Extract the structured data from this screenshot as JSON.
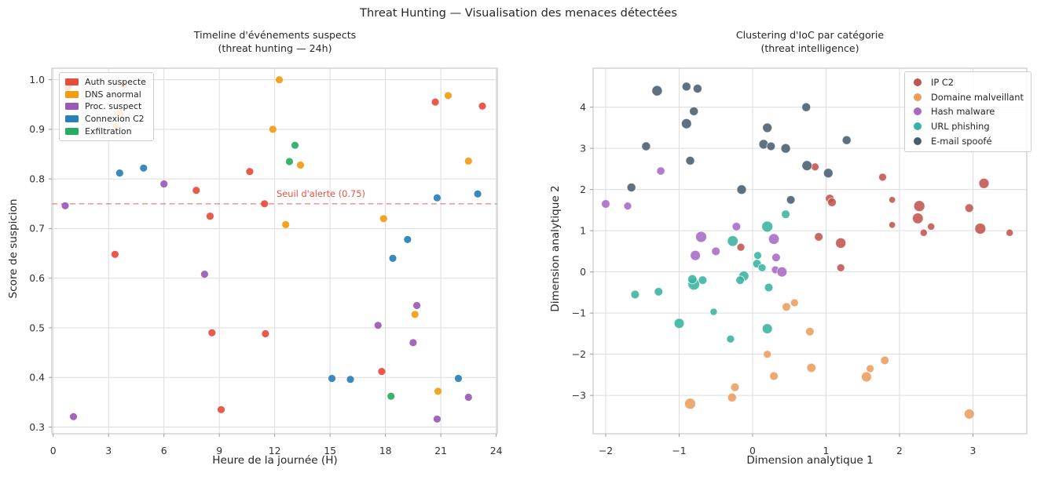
{
  "figure": {
    "title": "Threat Hunting — Visualisation des menaces détectées"
  },
  "chart_data": [
    {
      "type": "scatter",
      "title_line1": "Timeline d'événements suspects",
      "title_line2": "(threat hunting — 24h)",
      "xlabel": "Heure de la journée (H)",
      "ylabel": "Score de suspicion",
      "xlim": [
        -0.072,
        24.06
      ],
      "ylim": [
        0.2865,
        1.0232
      ],
      "xticks": {
        "values": [
          0,
          3,
          6,
          9,
          12,
          15,
          18,
          21,
          24
        ],
        "labels": [
          "0",
          "3",
          "6",
          "9",
          "12",
          "15",
          "18",
          "21",
          "24"
        ]
      },
      "yticks": {
        "values": [
          0.3,
          0.4,
          0.5,
          0.6,
          0.7,
          0.8,
          0.9,
          1.0
        ],
        "labels": [
          "0.3",
          "0.4",
          "0.5",
          "0.6",
          "0.7",
          "0.8",
          "0.9",
          "1.0"
        ]
      },
      "grid": true,
      "legend_position": "upper-left",
      "legend_marker": "rect",
      "marker_r": 4.6,
      "marker_alpha": 0.92,
      "marker_stroke": 0,
      "threshold": {
        "value": 0.75,
        "label": "Seuil d'alerte (0.75)",
        "color": "rgba(231,76,60,0.55)",
        "label_color": "#e05545",
        "label_x": 12.1,
        "label_y": 0.764
      },
      "series": [
        {
          "name": "Auth suspecte",
          "color": "#e74c3c",
          "points": [
            [
              0.8,
              0.985
            ],
            [
              3.8,
              0.99
            ],
            [
              3.35,
              0.648
            ],
            [
              7.75,
              0.777
            ],
            [
              8.5,
              0.725
            ],
            [
              8.6,
              0.49
            ],
            [
              9.1,
              0.335
            ],
            [
              10.65,
              0.815
            ],
            [
              11.45,
              0.75
            ],
            [
              11.5,
              0.488
            ],
            [
              17.8,
              0.412
            ],
            [
              20.7,
              0.955
            ],
            [
              23.25,
              0.947
            ]
          ]
        },
        {
          "name": "DNS anormal",
          "color": "#f39c12",
          "points": [
            [
              3.4,
              0.905
            ],
            [
              3.6,
              0.932
            ],
            [
              11.9,
              0.9
            ],
            [
              12.25,
              1.0
            ],
            [
              12.6,
              0.708
            ],
            [
              13.4,
              0.828
            ],
            [
              17.9,
              0.72
            ],
            [
              19.6,
              0.527
            ],
            [
              20.85,
              0.372
            ],
            [
              21.4,
              0.968
            ],
            [
              22.5,
              0.836
            ]
          ]
        },
        {
          "name": "Proc. suspect",
          "color": "#9b59b6",
          "points": [
            [
              0.65,
              0.746
            ],
            [
              1.1,
              0.321
            ],
            [
              6.0,
              0.79
            ],
            [
              8.2,
              0.608
            ],
            [
              17.6,
              0.505
            ],
            [
              19.5,
              0.47
            ],
            [
              19.7,
              0.545
            ],
            [
              20.8,
              0.316
            ],
            [
              22.5,
              0.36
            ]
          ]
        },
        {
          "name": "Connexion C2",
          "color": "#2980b9",
          "points": [
            [
              3.6,
              0.812
            ],
            [
              4.9,
              0.822
            ],
            [
              15.1,
              0.398
            ],
            [
              16.1,
              0.396
            ],
            [
              18.4,
              0.64
            ],
            [
              19.2,
              0.678
            ],
            [
              20.8,
              0.762
            ],
            [
              21.95,
              0.398
            ],
            [
              23.0,
              0.77
            ]
          ]
        },
        {
          "name": "Exfiltration",
          "color": "#27ae60",
          "points": [
            [
              12.8,
              0.835
            ],
            [
              13.1,
              0.868
            ],
            [
              18.3,
              0.362
            ]
          ]
        }
      ]
    },
    {
      "type": "scatter",
      "title_line1": "Clustering d'IoC par catégorie",
      "title_line2": "(threat intelligence)",
      "xlabel": "Dimension analytique 1",
      "ylabel": "Dimension analytique 2",
      "xlim": [
        -2.171,
        3.733
      ],
      "ylim": [
        -3.93,
        4.946
      ],
      "xticks": {
        "values": [
          -2,
          -1,
          0,
          1,
          2,
          3
        ],
        "labels": [
          "−2",
          "−1",
          "0",
          "1",
          "2",
          "3"
        ]
      },
      "yticks": {
        "values": [
          -3,
          -2,
          -1,
          0,
          1,
          2,
          3,
          4
        ],
        "labels": [
          "−3",
          "−2",
          "−1",
          "0",
          "1",
          "2",
          "3",
          "4"
        ]
      },
      "grid": true,
      "legend_position": "upper-right",
      "legend_marker": "circle",
      "marker_r": 5.5,
      "marker_alpha": 0.88,
      "marker_stroke": 0.9,
      "series": [
        {
          "name": "IP C2",
          "color": "#c0544e",
          "points": [
            [
              0.85,
              2.55,
              5
            ],
            [
              1.77,
              2.3,
              5
            ],
            [
              3.15,
              2.15,
              6.5
            ],
            [
              1.05,
              1.78,
              5.5
            ],
            [
              1.08,
              1.69,
              5.5
            ],
            [
              1.9,
              1.75,
              4.2
            ],
            [
              2.27,
              1.6,
              7
            ],
            [
              2.95,
              1.55,
              5.5
            ],
            [
              2.25,
              1.3,
              6.8
            ],
            [
              2.43,
              1.1,
              4.6
            ],
            [
              1.9,
              1.14,
              4.2
            ],
            [
              2.33,
              0.95,
              4.6
            ],
            [
              3.5,
              0.95,
              4.6
            ],
            [
              0.9,
              0.85,
              5.4
            ],
            [
              1.2,
              0.7,
              6.6
            ],
            [
              1.2,
              0.1,
              5
            ],
            [
              3.1,
              1.05,
              7
            ],
            [
              -0.16,
              0.6,
              5
            ]
          ]
        },
        {
          "name": "Domaine malveillant",
          "color": "#eb9d5b",
          "points": [
            [
              0.57,
              -0.75,
              5
            ],
            [
              0.46,
              -0.85,
              5.4
            ],
            [
              0.78,
              -1.45,
              5.4
            ],
            [
              0.2,
              -2.0,
              5
            ],
            [
              1.8,
              -2.15,
              5.4
            ],
            [
              0.8,
              -2.33,
              5.8
            ],
            [
              1.6,
              -2.35,
              5
            ],
            [
              1.55,
              -2.55,
              6.4
            ],
            [
              0.29,
              -2.53,
              5.4
            ],
            [
              -0.24,
              -2.8,
              5.4
            ],
            [
              -0.28,
              -3.05,
              5.6
            ],
            [
              -0.85,
              -3.2,
              7
            ],
            [
              2.95,
              -3.45,
              6.4
            ]
          ]
        },
        {
          "name": "Hash malware",
          "color": "#a869c4",
          "points": [
            [
              -2.0,
              1.65,
              5.4
            ],
            [
              -1.7,
              1.6,
              5
            ],
            [
              -1.25,
              2.45,
              5.2
            ],
            [
              -0.22,
              1.1,
              5.4
            ],
            [
              -0.7,
              0.85,
              7
            ],
            [
              -0.78,
              0.4,
              6.4
            ],
            [
              -0.5,
              0.5,
              5.4
            ],
            [
              0.29,
              0.8,
              6.8
            ],
            [
              0.32,
              0.35,
              5.4
            ],
            [
              0.31,
              0.05,
              5
            ],
            [
              0.4,
              0.0,
              6.4
            ]
          ]
        },
        {
          "name": "URL phishing",
          "color": "#39b3a1",
          "points": [
            [
              0.45,
              1.4,
              5.4
            ],
            [
              0.2,
              1.1,
              7
            ],
            [
              -0.27,
              0.75,
              6.8
            ],
            [
              0.07,
              0.4,
              5
            ],
            [
              0.06,
              0.2,
              5.4
            ],
            [
              0.13,
              0.1,
              5
            ],
            [
              -0.12,
              -0.1,
              6.4
            ],
            [
              -0.17,
              -0.2,
              5.4
            ],
            [
              -0.8,
              -0.3,
              7.4
            ],
            [
              -0.82,
              -0.18,
              5.8
            ],
            [
              -0.68,
              -0.2,
              5.4
            ],
            [
              -1.6,
              -0.55,
              5.4
            ],
            [
              -1.28,
              -0.48,
              5.4
            ],
            [
              0.22,
              -0.38,
              5.4
            ],
            [
              -0.53,
              -0.97,
              4.6
            ],
            [
              -1.0,
              -1.25,
              6.4
            ],
            [
              -0.3,
              -1.63,
              5
            ],
            [
              0.2,
              -1.38,
              6.4
            ]
          ]
        },
        {
          "name": "E-mail spoofé",
          "color": "#495d6e",
          "points": [
            [
              -1.3,
              4.4,
              6.6
            ],
            [
              -0.9,
              4.5,
              5.6
            ],
            [
              -0.75,
              4.45,
              5.6
            ],
            [
              -0.8,
              3.9,
              5.6
            ],
            [
              -0.9,
              3.6,
              6.4
            ],
            [
              0.73,
              4.0,
              5.6
            ],
            [
              -1.45,
              3.05,
              5.6
            ],
            [
              0.2,
              3.5,
              6
            ],
            [
              0.15,
              3.1,
              6
            ],
            [
              0.25,
              3.05,
              5.4
            ],
            [
              0.45,
              3.0,
              6
            ],
            [
              -0.85,
              2.7,
              5.6
            ],
            [
              -1.65,
              2.05,
              5.6
            ],
            [
              -0.15,
              2.0,
              6
            ],
            [
              0.74,
              2.58,
              6.4
            ],
            [
              1.03,
              2.4,
              6
            ],
            [
              1.28,
              3.2,
              5.6
            ],
            [
              0.52,
              1.75,
              5.4
            ]
          ]
        }
      ]
    }
  ]
}
